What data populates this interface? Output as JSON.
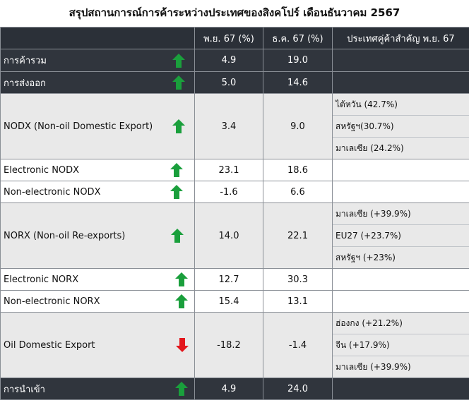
{
  "title": "สรุปสถานการณ์การค้าระหว่างประเทศของสิงคโปร์ เดือนธันวาคม 2567",
  "headers": [
    "",
    "พ.ย. 67 (%)",
    "ธ.ค. 67 (%)",
    "ประเทศคู่ค้าสำคัญ พ.ย. 67"
  ],
  "colors": {
    "up": "#1a9f3c",
    "down": "#e3161c",
    "dark": "#30353d",
    "light": "#e9e9e9"
  },
  "rows": [
    {
      "label": "การค้ารวม",
      "trend": "up",
      "nov": "4.9",
      "dec": "19.0",
      "partners": []
    },
    {
      "label": "การส่งออก",
      "trend": "up",
      "nov": "5.0",
      "dec": "14.6",
      "partners": []
    },
    {
      "label": "NODX (Non-oil Domestic Export)",
      "trend": "up",
      "nov": "3.4",
      "dec": "9.0",
      "partners": [
        "ไต้หวัน (42.7%)",
        "สหรัฐฯ(30.7%)",
        "มาเลเซีย (24.2%)"
      ]
    },
    {
      "label": "Electronic NODX",
      "trend": "up",
      "nov": "23.1",
      "dec": "18.6",
      "partners": []
    },
    {
      "label": "Non-electronic NODX",
      "trend": "up",
      "nov": "-1.6",
      "dec": "6.6",
      "partners": []
    },
    {
      "label": "NORX (Non-oil Re-exports)",
      "trend": "up",
      "nov": "14.0",
      "dec": "22.1",
      "partners": [
        "มาเลเซีย (+39.9%)",
        "EU27 (+23.7%)",
        "สหรัฐฯ (+23%)"
      ]
    },
    {
      "label": "Electronic NORX",
      "trend": "up",
      "nov": "12.7",
      "dec": "30.3",
      "partners": []
    },
    {
      "label": "Non-electronic NORX",
      "trend": "up",
      "nov": "15.4",
      "dec": "13.1",
      "partners": []
    },
    {
      "label": "Oil Domestic Export",
      "trend": "down",
      "nov": "-18.2",
      "dec": "-1.4",
      "partners": [
        "ฮ่องกง (+21.2%)",
        "จีน (+17.9%)",
        "มาเลเซีย (+39.9%)"
      ]
    },
    {
      "label": "การนำเข้า",
      "trend": "up",
      "nov": "4.9",
      "dec": "24.0",
      "partners": []
    }
  ]
}
